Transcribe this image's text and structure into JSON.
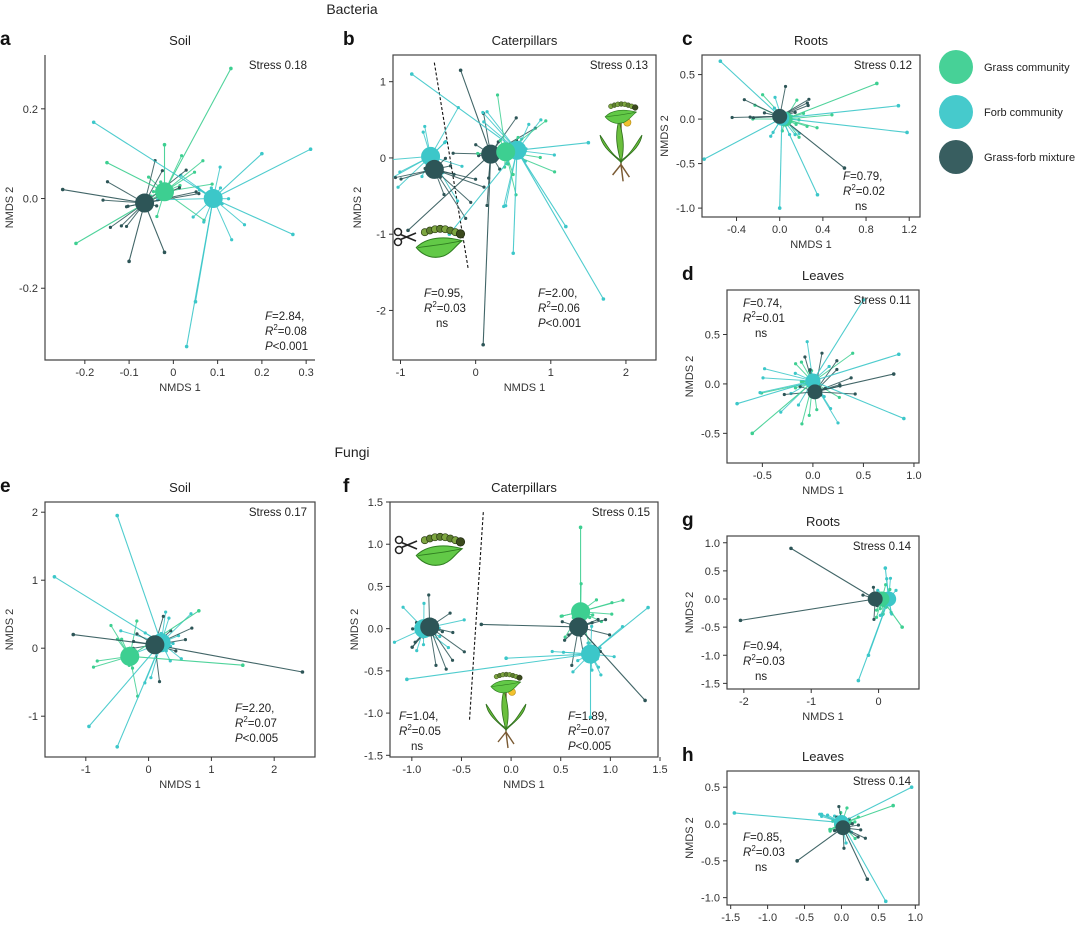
{
  "colors": {
    "grass": "#3dcf91",
    "forb": "#3cc7c9",
    "mixture": "#2d5557",
    "frame": "#444444"
  },
  "figure": {
    "bacteria_title": "Bacteria",
    "fungi_title": "Fungi"
  },
  "legend": {
    "items": [
      {
        "key": "grass",
        "label": "Grass community"
      },
      {
        "key": "forb",
        "label": "Forb community"
      },
      {
        "key": "mixture",
        "label": "Grass-forb mixture"
      }
    ]
  },
  "chart_data": [
    {
      "type": "scatter",
      "id": "a",
      "letter": "a",
      "title": "Soil",
      "xlabel": "NMDS 1",
      "ylabel": "NMDS 2",
      "xlim": [
        -0.29,
        0.32
      ],
      "ylim": [
        -0.36,
        0.32
      ],
      "xticks": [
        -0.2,
        -0.1,
        0,
        0.1,
        0.2,
        0.3
      ],
      "xtick_labels": [
        "-0.2",
        "-0.1",
        "0",
        "0.1",
        "0.2",
        "0.3"
      ],
      "yticks": [
        -0.2,
        0,
        0.2
      ],
      "ytick_labels": [
        "-0.2",
        "0.0",
        "0.2"
      ],
      "frame": "L",
      "stress": "Stress 0.18",
      "stats": {
        "F": "=2.84,",
        "R2": "=0.08",
        "p": "P<0.001",
        "pos": "bottom-right"
      },
      "spread": [
        0.13,
        0.11
      ],
      "centroids": [
        {
          "group": "grass",
          "x": -0.02,
          "y": 0.015
        },
        {
          "group": "forb",
          "x": 0.09,
          "y": 0.0
        },
        {
          "group": "mixture",
          "x": -0.065,
          "y": -0.01
        }
      ],
      "rays": [
        {
          "group": "grass",
          "x": 0.13,
          "y": 0.29
        },
        {
          "group": "grass",
          "x": -0.22,
          "y": -0.1
        },
        {
          "group": "grass",
          "x": -0.15,
          "y": 0.08
        },
        {
          "group": "grass",
          "x": -0.02,
          "y": 0.12
        },
        {
          "group": "forb",
          "x": 0.31,
          "y": 0.11
        },
        {
          "group": "forb",
          "x": 0.27,
          "y": -0.08
        },
        {
          "group": "forb",
          "x": 0.05,
          "y": -0.23
        },
        {
          "group": "forb",
          "x": 0.03,
          "y": -0.33
        },
        {
          "group": "forb",
          "x": -0.18,
          "y": 0.17
        },
        {
          "group": "forb",
          "x": 0.2,
          "y": 0.1
        },
        {
          "group": "mixture",
          "x": -0.25,
          "y": 0.02
        },
        {
          "group": "mixture",
          "x": -0.1,
          "y": -0.14
        },
        {
          "group": "mixture",
          "x": -0.02,
          "y": -0.12
        }
      ]
    },
    {
      "type": "scatter",
      "id": "b",
      "letter": "b",
      "title": "Caterpillars",
      "xlabel": "NMDS 1",
      "ylabel": "NMDS 2",
      "xlim": [
        -1.1,
        2.4
      ],
      "ylim": [
        -2.65,
        1.35
      ],
      "xticks": [
        -1,
        0,
        1,
        2
      ],
      "xtick_labels": [
        "-1",
        "0",
        "1",
        "2"
      ],
      "yticks": [
        -2,
        -1,
        0,
        1
      ],
      "ytick_labels": [
        "-2",
        "-1",
        "0",
        "1"
      ],
      "frame": "box",
      "stress": "Stress 0.13",
      "stats": {
        "F": "=2.00,",
        "R2": "=0.06",
        "p": "P<0.001",
        "pos": "right-mid"
      },
      "stats2": {
        "F": "=0.95,",
        "R2": "=0.03",
        "p": "ns",
        "pos": "left-mid"
      },
      "divider": [
        [
          -0.55,
          1.25
        ],
        [
          -0.1,
          -1.45
        ]
      ],
      "icons": [
        "scissors-caterpillar-left",
        "dandelion-caterpillar-right"
      ],
      "spread": [
        0.75,
        0.85
      ],
      "centroids": [
        {
          "group": "forb",
          "x": -0.6,
          "y": 0.02
        },
        {
          "group": "mixture",
          "x": -0.55,
          "y": -0.15
        },
        {
          "group": "mixture",
          "x": 0.2,
          "y": 0.05
        },
        {
          "group": "forb",
          "x": 0.55,
          "y": 0.1
        },
        {
          "group": "grass",
          "x": 0.4,
          "y": 0.08
        }
      ],
      "rays": [
        {
          "group": "forb",
          "x": 1.7,
          "y": -1.85
        },
        {
          "group": "mixture",
          "x": 0.1,
          "y": -2.45
        },
        {
          "group": "forb",
          "x": 0.5,
          "y": -1.25
        },
        {
          "group": "forb",
          "x": 1.2,
          "y": -0.9
        },
        {
          "group": "mixture",
          "x": -0.2,
          "y": 1.15
        },
        {
          "group": "forb",
          "x": 1.5,
          "y": 0.2
        },
        {
          "group": "forb",
          "x": -0.85,
          "y": 1.1
        },
        {
          "group": "mixture",
          "x": -0.9,
          "y": -0.95
        },
        {
          "group": "forb",
          "x": -0.35,
          "y": -1.0
        }
      ]
    },
    {
      "type": "scatter",
      "id": "c",
      "letter": "c",
      "title": "Roots",
      "xlabel": "NMDS 1",
      "ylabel": "NMDS 2",
      "xlim": [
        -0.72,
        1.3
      ],
      "ylim": [
        -1.1,
        0.72
      ],
      "xticks": [
        -0.4,
        0,
        0.4,
        0.8,
        1.2
      ],
      "xtick_labels": [
        "-0.4",
        "0.0",
        "0.4",
        "0.8",
        "1.2"
      ],
      "yticks": [
        -1,
        -0.5,
        0,
        0.5
      ],
      "ytick_labels": [
        "-1.0",
        "-0.5",
        "0.0",
        "0.5"
      ],
      "frame": "box",
      "stress": "Stress 0.12",
      "stats": {
        "F": "=0.79,",
        "R2": "=0.02",
        "p": "ns",
        "pos": "lower-right"
      },
      "spread": [
        0.45,
        0.35
      ],
      "centroids": [
        {
          "group": "grass",
          "x": 0.05,
          "y": 0.0
        },
        {
          "group": "forb",
          "x": 0.02,
          "y": 0.01
        },
        {
          "group": "mixture",
          "x": 0.0,
          "y": 0.03
        }
      ],
      "rays": [
        {
          "group": "forb",
          "x": -0.55,
          "y": 0.65
        },
        {
          "group": "forb",
          "x": 1.1,
          "y": 0.15
        },
        {
          "group": "forb",
          "x": 1.18,
          "y": -0.15
        },
        {
          "group": "forb",
          "x": -0.7,
          "y": -0.45
        },
        {
          "group": "forb",
          "x": 0.0,
          "y": -1.0
        },
        {
          "group": "mixture",
          "x": 0.6,
          "y": -0.55
        },
        {
          "group": "forb",
          "x": 0.35,
          "y": -0.85
        },
        {
          "group": "grass",
          "x": 0.9,
          "y": 0.4
        }
      ]
    },
    {
      "type": "scatter",
      "id": "d",
      "letter": "d",
      "title": "Leaves",
      "xlabel": "NMDS 1",
      "ylabel": "NMDS 2",
      "xlim": [
        -0.85,
        1.05
      ],
      "ylim": [
        -0.8,
        0.95
      ],
      "xticks": [
        -0.5,
        0,
        0.5,
        1
      ],
      "xtick_labels": [
        "-0.5",
        "0.0",
        "0.5",
        "1.0"
      ],
      "yticks": [
        -0.5,
        0,
        0.5
      ],
      "ytick_labels": [
        "-0.5",
        "0.0",
        "0.5"
      ],
      "frame": "box",
      "stress": "Stress 0.11",
      "stats": {
        "F": "=0.74,",
        "R2": "=0.01",
        "p": "ns",
        "pos": "top-left"
      },
      "spread": [
        0.55,
        0.5
      ],
      "centroids": [
        {
          "group": "grass",
          "x": 0.0,
          "y": 0.02
        },
        {
          "group": "forb",
          "x": 0.0,
          "y": 0.03
        },
        {
          "group": "mixture",
          "x": 0.02,
          "y": -0.08
        }
      ],
      "rays": [
        {
          "group": "forb",
          "x": 0.9,
          "y": -0.35
        },
        {
          "group": "forb",
          "x": 0.85,
          "y": 0.3
        },
        {
          "group": "forb",
          "x": 0.5,
          "y": 0.85
        },
        {
          "group": "forb",
          "x": -0.75,
          "y": -0.2
        },
        {
          "group": "mixture",
          "x": 0.8,
          "y": 0.1
        },
        {
          "group": "grass",
          "x": -0.6,
          "y": -0.5
        }
      ]
    },
    {
      "type": "scatter",
      "id": "e",
      "letter": "e",
      "title": "Soil",
      "xlabel": "NMDS 1",
      "ylabel": "NMDS 2",
      "xlim": [
        -1.65,
        2.65
      ],
      "ylim": [
        -1.6,
        2.15
      ],
      "xticks": [
        -1,
        0,
        1,
        2
      ],
      "xtick_labels": [
        "-1",
        "0",
        "1",
        "2"
      ],
      "yticks": [
        -1,
        0,
        1,
        2
      ],
      "ytick_labels": [
        "-1",
        "0",
        "1",
        "2"
      ],
      "frame": "box",
      "stress": "Stress 0.17",
      "stats": {
        "F": "=2.20,",
        "R2": "=0.07",
        "p": "P<0.005",
        "pos": "bottom-right"
      },
      "spread": [
        0.7,
        0.65
      ],
      "centroids": [
        {
          "group": "grass",
          "x": -0.3,
          "y": -0.12
        },
        {
          "group": "forb",
          "x": 0.2,
          "y": 0.08
        },
        {
          "group": "mixture",
          "x": 0.1,
          "y": 0.05
        }
      ],
      "rays": [
        {
          "group": "forb",
          "x": -0.5,
          "y": 1.95
        },
        {
          "group": "mixture",
          "x": 2.45,
          "y": -0.35
        },
        {
          "group": "grass",
          "x": 1.5,
          "y": -0.25
        },
        {
          "group": "forb",
          "x": -1.5,
          "y": 1.05
        },
        {
          "group": "forb",
          "x": -0.95,
          "y": -1.15
        },
        {
          "group": "forb",
          "x": -0.5,
          "y": -1.45
        },
        {
          "group": "grass",
          "x": 0.8,
          "y": 0.55
        },
        {
          "group": "mixture",
          "x": -1.2,
          "y": 0.2
        }
      ]
    },
    {
      "type": "scatter",
      "id": "f",
      "letter": "f",
      "title": "Caterpillars",
      "xlabel": "NMDS 1",
      "ylabel": "NMDS 2",
      "xlim": [
        -1.22,
        1.48
      ],
      "ylim": [
        -1.52,
        1.5
      ],
      "xticks": [
        -1,
        -0.5,
        0,
        0.5,
        1,
        1.5
      ],
      "xtick_labels": [
        "-1.0",
        "-0.5",
        "0.0",
        "0.5",
        "1.0",
        "1.5"
      ],
      "yticks": [
        -1.5,
        -1,
        -0.5,
        0,
        0.5,
        1,
        1.5
      ],
      "ytick_labels": [
        "-1.5",
        "-1.0",
        "-0.5",
        "0.0",
        "0.5",
        "1.0",
        "1.5"
      ],
      "frame": "box",
      "stress": "Stress 0.15",
      "stats": {
        "F": "=1.89,",
        "R2": "=0.07",
        "p": "P<0.005",
        "pos": "bottom-right"
      },
      "stats2": {
        "F": "=1.04,",
        "R2": "=0.05",
        "p": "ns",
        "pos": "bottom-left"
      },
      "divider": [
        [
          -0.28,
          1.38
        ],
        [
          -0.42,
          -1.1
        ]
      ],
      "icons": [
        "scissors-caterpillar-left",
        "dandelion-caterpillar-bottom"
      ],
      "spread": [
        0.45,
        0.55
      ],
      "centroids": [
        {
          "group": "forb",
          "x": -0.88,
          "y": 0.0
        },
        {
          "group": "mixture",
          "x": -0.82,
          "y": 0.02
        },
        {
          "group": "grass",
          "x": 0.7,
          "y": 0.2
        },
        {
          "group": "mixture",
          "x": 0.68,
          "y": 0.02
        },
        {
          "group": "forb",
          "x": 0.8,
          "y": -0.3
        }
      ],
      "rays": [
        {
          "group": "grass",
          "x": 0.7,
          "y": 1.2
        },
        {
          "group": "forb",
          "x": 1.38,
          "y": 0.25
        },
        {
          "group": "mixture",
          "x": 1.35,
          "y": -0.85
        },
        {
          "group": "forb",
          "x": 0.8,
          "y": -1.05
        },
        {
          "group": "forb",
          "x": -0.05,
          "y": -0.35
        },
        {
          "group": "mixture",
          "x": -0.3,
          "y": 0.05
        },
        {
          "group": "forb",
          "x": -1.05,
          "y": -0.6
        }
      ]
    },
    {
      "type": "scatter",
      "id": "g",
      "letter": "g",
      "title": "Roots",
      "xlabel": "NMDS 1",
      "ylabel": "NMDS 2",
      "xlim": [
        -2.25,
        0.6
      ],
      "ylim": [
        -1.6,
        1.12
      ],
      "xticks": [
        -2,
        -1,
        0
      ],
      "xtick_labels": [
        "-2",
        "-1",
        "0"
      ],
      "yticks": [
        -1.5,
        -1,
        -0.5,
        0,
        0.5,
        1
      ],
      "ytick_labels": [
        "-1.5",
        "-1.0",
        "-0.5",
        "0.0",
        "0.5",
        "1.0"
      ],
      "frame": "box",
      "stress": "Stress 0.14",
      "stats": {
        "F": "=0.94,",
        "R2": "=0.03",
        "p": "ns",
        "pos": "lower-left"
      },
      "spread": [
        0.2,
        0.4
      ],
      "centroids": [
        {
          "group": "forb",
          "x": 0.15,
          "y": 0.0
        },
        {
          "group": "grass",
          "x": 0.05,
          "y": 0.0
        },
        {
          "group": "mixture",
          "x": -0.05,
          "y": 0.0
        }
      ],
      "rays": [
        {
          "group": "mixture",
          "x": -2.05,
          "y": -0.38
        },
        {
          "group": "mixture",
          "x": -1.3,
          "y": 0.9
        },
        {
          "group": "forb",
          "x": -0.3,
          "y": -1.45
        },
        {
          "group": "forb",
          "x": 0.1,
          "y": 0.55
        },
        {
          "group": "forb",
          "x": -0.15,
          "y": -1.0
        },
        {
          "group": "grass",
          "x": 0.35,
          "y": -0.5
        }
      ]
    },
    {
      "type": "scatter",
      "id": "h",
      "letter": "h",
      "title": "Leaves",
      "xlabel": "NMDS 1",
      "ylabel": "NMDS 2",
      "xlim": [
        -1.55,
        1.05
      ],
      "ylim": [
        -1.1,
        0.72
      ],
      "xticks": [
        -1.5,
        -1,
        -0.5,
        0,
        0.5,
        1
      ],
      "xtick_labels": [
        "-1.5",
        "-1.0",
        "-0.5",
        "0.0",
        "0.5",
        "1.0"
      ],
      "yticks": [
        -1,
        -0.5,
        0,
        0.5
      ],
      "ytick_labels": [
        "-1.0",
        "-0.5",
        "0.0",
        "0.5"
      ],
      "frame": "box",
      "stress": "Stress 0.14",
      "stats": {
        "F": "=0.85,",
        "R2": "=0.03",
        "p": "ns",
        "pos": "lower-left"
      },
      "spread": [
        0.35,
        0.35
      ],
      "centroids": [
        {
          "group": "grass",
          "x": 0.0,
          "y": 0.0
        },
        {
          "group": "forb",
          "x": 0.0,
          "y": 0.02
        },
        {
          "group": "mixture",
          "x": 0.02,
          "y": -0.05
        }
      ],
      "rays": [
        {
          "group": "forb",
          "x": -1.45,
          "y": 0.15
        },
        {
          "group": "forb",
          "x": 0.95,
          "y": 0.5
        },
        {
          "group": "forb",
          "x": 0.6,
          "y": -1.05
        },
        {
          "group": "mixture",
          "x": -0.6,
          "y": -0.5
        },
        {
          "group": "mixture",
          "x": 0.35,
          "y": -0.75
        },
        {
          "group": "grass",
          "x": 0.7,
          "y": 0.25
        }
      ]
    }
  ]
}
